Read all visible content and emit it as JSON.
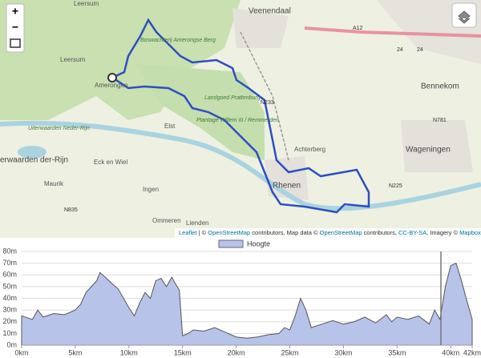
{
  "map": {
    "labels": [
      "Veenendaal",
      "Leersum",
      "Amerongen",
      "Boswachterij Amerongse Berg",
      "Landgoed Prattenburg",
      "Plantage Willem III / Remmerden",
      "Elst",
      "Achterberg",
      "Rhenen",
      "Eck en Wiel",
      "Ingen",
      "Maurik",
      "Ommeren",
      "Lienden",
      "Wageningen",
      "Bennekom",
      "Uiterwaarden Neder-Rijn",
      "erwaarden der-Rijn",
      "Leersum"
    ],
    "roads": [
      "A12",
      "N233",
      "N225",
      "N781",
      "N835",
      "24",
      "24"
    ],
    "attribution": [
      "Leaflet",
      " | © ",
      "OpenStreetMap",
      " contributors, Map data © ",
      "OpenStreetMap",
      " contributors, ",
      "CC-BY-SA",
      ", Imagery © ",
      "Mapbox"
    ],
    "zoom": [
      "+",
      "−"
    ]
  },
  "chart_data": {
    "type": "area",
    "series": [
      {
        "name": "Hoogte",
        "color": "#b8c3ea",
        "values": [
          25,
          22,
          30,
          24,
          27,
          26,
          30,
          35,
          45,
          50,
          55,
          62,
          58,
          52,
          48,
          40,
          32,
          25,
          36,
          45,
          40,
          55,
          57,
          50,
          58,
          53,
          47,
          8,
          10,
          13,
          12,
          15,
          11,
          7,
          6,
          7,
          9,
          10,
          15,
          13,
          25,
          40,
          30,
          15,
          18,
          21,
          18,
          20,
          24,
          19,
          26,
          20,
          24,
          22,
          25,
          18,
          30,
          22,
          50,
          68,
          70,
          55,
          38,
          22
        ]
      }
    ],
    "x": [
      0,
      1,
      1.5,
      2,
      3,
      4,
      5,
      5.5,
      6,
      6.5,
      7,
      7.3,
      7.8,
      8.5,
      9,
      9.5,
      10,
      10.5,
      11,
      11.5,
      12,
      12.5,
      13,
      13.5,
      14,
      14.3,
      14.7,
      15,
      15.5,
      16,
      17,
      18,
      19,
      20,
      21,
      22,
      23,
      24,
      24.5,
      25,
      25.5,
      26,
      26.5,
      27,
      28,
      29,
      30,
      31,
      32,
      33,
      34,
      34.5,
      35,
      36,
      37,
      38,
      38.5,
      39,
      39.5,
      40,
      40.5,
      41,
      41.5,
      42
    ],
    "xlim": [
      0,
      42
    ],
    "xticks": [
      {
        "value": 0,
        "label": "0km"
      },
      {
        "value": 5,
        "label": "5km"
      },
      {
        "value": 10,
        "label": "10km"
      },
      {
        "value": 15,
        "label": "15km"
      },
      {
        "value": 20,
        "label": "20km"
      },
      {
        "value": 25,
        "label": "25km"
      },
      {
        "value": 30,
        "label": "30km"
      },
      {
        "value": 35,
        "label": "35km"
      },
      {
        "value": 40,
        "label": "40km"
      },
      {
        "value": 42,
        "label": "42km"
      }
    ],
    "ylim": [
      0,
      80
    ],
    "yticks": [
      {
        "value": 0,
        "label": "0m"
      },
      {
        "value": 10,
        "label": "10m"
      },
      {
        "value": 20,
        "label": "20m"
      },
      {
        "value": 30,
        "label": "30m"
      },
      {
        "value": 40,
        "label": "40m"
      },
      {
        "value": 50,
        "label": "50m"
      },
      {
        "value": 60,
        "label": "60m"
      },
      {
        "value": 70,
        "label": "70m"
      },
      {
        "value": 80,
        "label": "80m"
      }
    ],
    "grid": true
  }
}
